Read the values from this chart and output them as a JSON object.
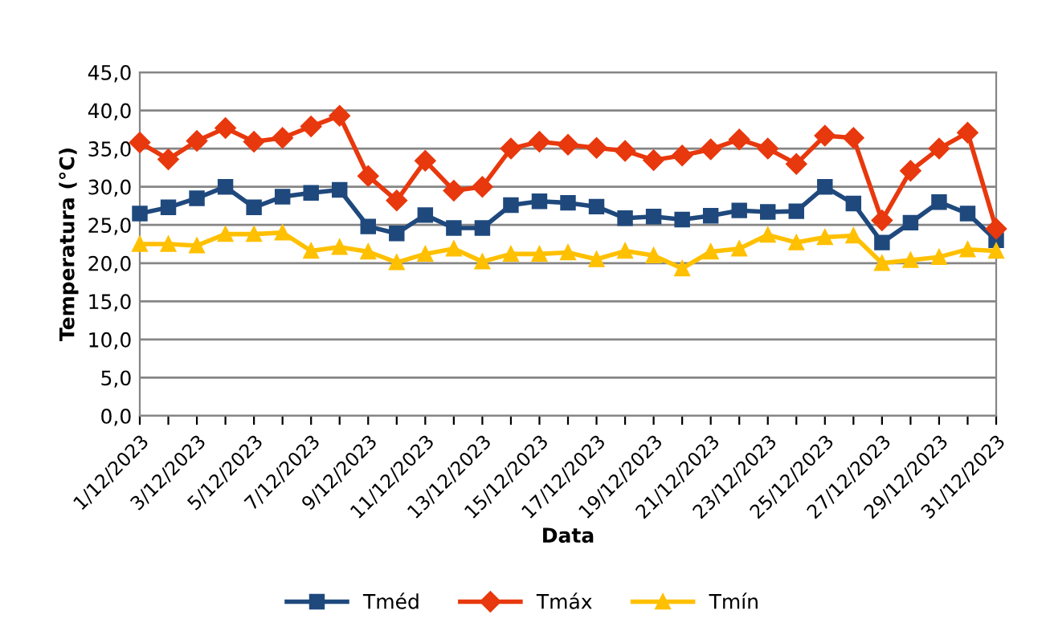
{
  "chart_data": {
    "type": "line",
    "xlabel": "Data",
    "ylabel": "Temperatura (°C)",
    "categories": [
      "1/12/2023",
      null,
      "3/12/2023",
      null,
      "5/12/2023",
      null,
      "7/12/2023",
      null,
      "9/12/2023",
      null,
      "11/12/2023",
      null,
      "13/12/2023",
      null,
      "15/12/2023",
      null,
      "17/12/2023",
      null,
      "19/12/2023",
      null,
      "21/12/2023",
      null,
      "23/12/2023",
      null,
      "25/12/2023",
      null,
      "27/12/2023",
      null,
      "29/12/2023",
      null,
      "31/12/2023"
    ],
    "series": [
      {
        "name": "Tméd",
        "color": "#1f497d",
        "marker": "square",
        "values": [
          26.5,
          27.3,
          28.5,
          30.0,
          27.3,
          28.7,
          29.2,
          29.6,
          24.8,
          23.9,
          26.3,
          24.6,
          24.6,
          27.6,
          28.1,
          27.9,
          27.4,
          25.9,
          26.1,
          25.7,
          26.2,
          26.9,
          26.7,
          26.8,
          30.0,
          27.8,
          22.7,
          25.3,
          28.0,
          26.5,
          23.0
        ]
      },
      {
        "name": "Tmáx",
        "color": "#e8380d",
        "marker": "diamond",
        "values": [
          35.8,
          33.6,
          36.0,
          37.7,
          35.9,
          36.4,
          37.9,
          39.3,
          31.4,
          28.2,
          33.4,
          29.5,
          30.0,
          35.0,
          35.9,
          35.5,
          35.1,
          34.7,
          33.5,
          34.1,
          34.9,
          36.2,
          35.0,
          33.0,
          36.7,
          36.4,
          25.6,
          32.1,
          35.0,
          37.1,
          24.5
        ]
      },
      {
        "name": "Tmín",
        "color": "#ffc000",
        "marker": "triangle",
        "values": [
          22.5,
          22.5,
          22.3,
          23.8,
          23.8,
          24.0,
          21.6,
          22.1,
          21.5,
          20.1,
          21.2,
          21.9,
          20.2,
          21.2,
          21.2,
          21.4,
          20.5,
          21.6,
          21.0,
          19.3,
          21.5,
          21.9,
          23.7,
          22.7,
          23.4,
          23.6,
          20.0,
          20.4,
          20.8,
          21.8,
          21.6
        ]
      }
    ],
    "ylim": [
      0,
      45
    ],
    "yticks": [
      {
        "value": 0,
        "label": "0,0"
      },
      {
        "value": 5,
        "label": "5,0"
      },
      {
        "value": 10,
        "label": "10,0"
      },
      {
        "value": 15,
        "label": "15,0"
      },
      {
        "value": 20,
        "label": "20,0"
      },
      {
        "value": 25,
        "label": "25,0"
      },
      {
        "value": 30,
        "label": "30,0"
      },
      {
        "value": 35,
        "label": "35,0"
      },
      {
        "value": 40,
        "label": "40,0"
      },
      {
        "value": 45,
        "label": "45,0"
      }
    ],
    "grid": "y",
    "legend": "bottom",
    "line_style": "solid"
  }
}
